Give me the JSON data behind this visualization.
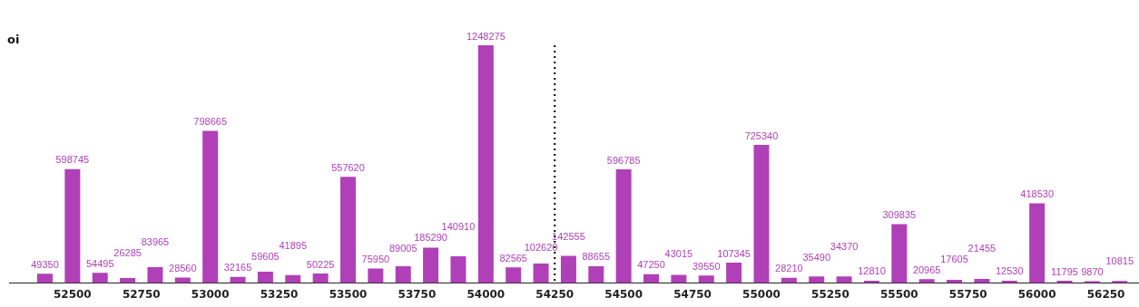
{
  "chart_data": {
    "type": "bar",
    "ylabel": "oi",
    "x": [
      52400,
      52500,
      52600,
      52700,
      52800,
      52900,
      53000,
      53100,
      53200,
      53300,
      53400,
      53500,
      53600,
      53700,
      53800,
      53900,
      54000,
      54100,
      54200,
      54300,
      54400,
      54500,
      54600,
      54700,
      54800,
      54900,
      55000,
      55100,
      55200,
      55300,
      55400,
      55500,
      55600,
      55700,
      55800,
      55900,
      56000,
      56100,
      56200,
      56300
    ],
    "values": [
      49350,
      598745,
      54495,
      26285,
      83965,
      28560,
      798665,
      32165,
      59605,
      41895,
      50225,
      557620,
      75950,
      89005,
      185290,
      140910,
      1248275,
      82565,
      102620,
      142555,
      88655,
      596785,
      47250,
      43015,
      39550,
      107345,
      725340,
      28210,
      35490,
      34370,
      12810,
      309835,
      20965,
      17605,
      21455,
      12530,
      418530,
      11795,
      9870,
      10815
    ],
    "color": "#b040b8",
    "data_labels": true,
    "xlim": [
      52270,
      56370
    ],
    "xticks": [
      52500,
      52750,
      53000,
      53250,
      53500,
      53750,
      54000,
      54250,
      54500,
      54750,
      55000,
      55250,
      55500,
      55750,
      56000,
      56250
    ],
    "tick_labels": "x",
    "legend": false,
    "ref_lines": [
      {
        "axis": "x",
        "value": 54250,
        "color": "#000000",
        "line_style": "dotted"
      }
    ]
  }
}
